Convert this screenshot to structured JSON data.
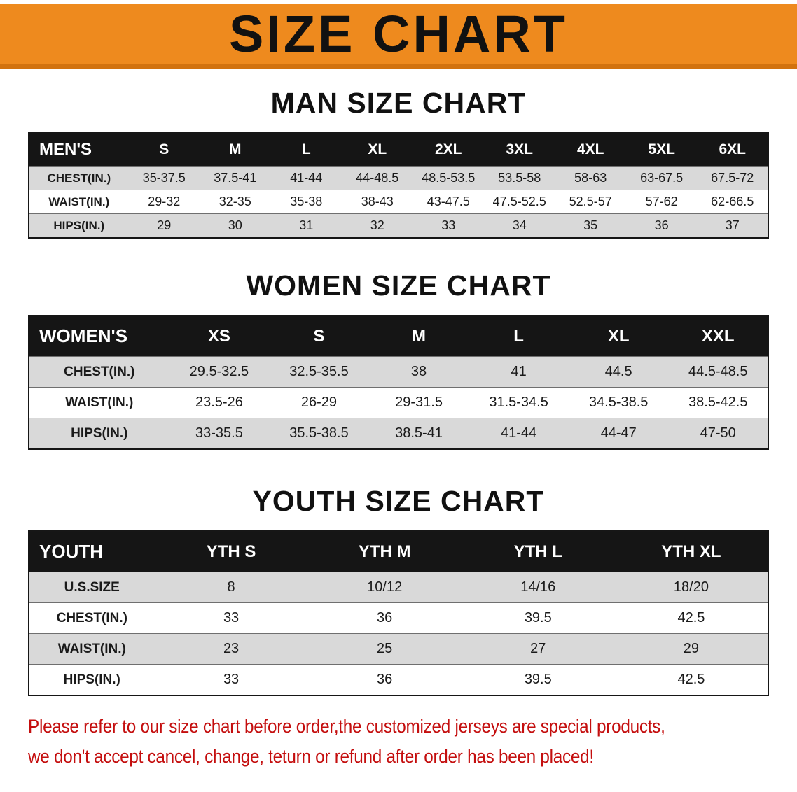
{
  "banner": {
    "title": "SIZE CHART"
  },
  "colors": {
    "banner_bg": "#EE8A1E",
    "banner_edge": "#D2720E",
    "table_header_bg": "#151515",
    "table_header_text": "#FFFFFF",
    "row_alt_bg": "#D9D9D9",
    "notice_text": "#C40E0E"
  },
  "chart_data": [
    {
      "type": "table",
      "title": "MAN SIZE CHART",
      "columns": [
        "MEN'S",
        "S",
        "M",
        "L",
        "XL",
        "2XL",
        "3XL",
        "4XL",
        "5XL",
        "6XL"
      ],
      "rows": [
        [
          "CHEST(IN.)",
          "35-37.5",
          "37.5-41",
          "41-44",
          "44-48.5",
          "48.5-53.5",
          "53.5-58",
          "58-63",
          "63-67.5",
          "67.5-72"
        ],
        [
          "WAIST(IN.)",
          "29-32",
          "32-35",
          "35-38",
          "38-43",
          "43-47.5",
          "47.5-52.5",
          "52.5-57",
          "57-62",
          "62-66.5"
        ],
        [
          "HIPS(IN.)",
          "29",
          "30",
          "31",
          "32",
          "33",
          "34",
          "35",
          "36",
          "37"
        ]
      ]
    },
    {
      "type": "table",
      "title": "WOMEN SIZE CHART",
      "columns": [
        "WOMEN'S",
        "XS",
        "S",
        "M",
        "L",
        "XL",
        "XXL"
      ],
      "rows": [
        [
          "CHEST(IN.)",
          "29.5-32.5",
          "32.5-35.5",
          "38",
          "41",
          "44.5",
          "44.5-48.5"
        ],
        [
          "WAIST(IN.)",
          "23.5-26",
          "26-29",
          "29-31.5",
          "31.5-34.5",
          "34.5-38.5",
          "38.5-42.5"
        ],
        [
          "HIPS(IN.)",
          "33-35.5",
          "35.5-38.5",
          "38.5-41",
          "41-44",
          "44-47",
          "47-50"
        ]
      ]
    },
    {
      "type": "table",
      "title": "YOUTH SIZE CHART",
      "columns": [
        "YOUTH",
        "YTH S",
        "YTH M",
        "YTH L",
        "YTH XL"
      ],
      "rows": [
        [
          "U.S.SIZE",
          "8",
          "10/12",
          "14/16",
          "18/20"
        ],
        [
          "CHEST(IN.)",
          "33",
          "36",
          "39.5",
          "42.5"
        ],
        [
          "WAIST(IN.)",
          "23",
          "25",
          "27",
          "29"
        ],
        [
          "HIPS(IN.)",
          "33",
          "36",
          "39.5",
          "42.5"
        ]
      ]
    }
  ],
  "footer": {
    "line1": "Please refer to our size chart before order,the customized jerseys are special products,",
    "line2": "we don't accept cancel, change, teturn or refund after order has been placed!"
  }
}
